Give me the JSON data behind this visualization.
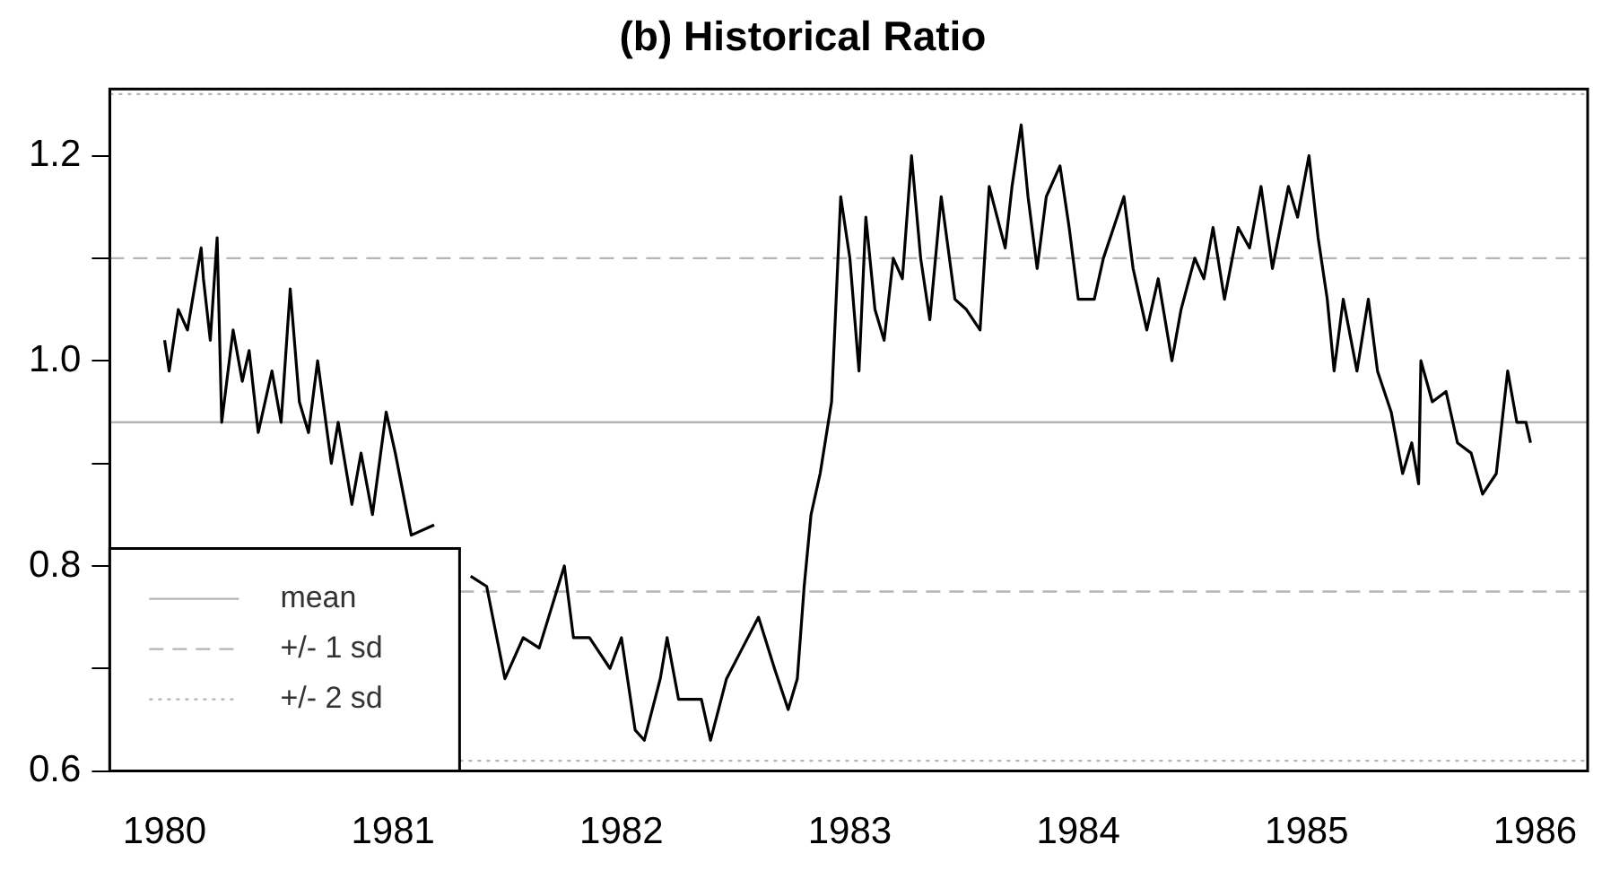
{
  "chart_data": {
    "type": "line",
    "title": "(b) Historical Ratio",
    "x": [
      1980.0,
      1980.02,
      1980.06,
      1980.1,
      1980.16,
      1980.17,
      1980.2,
      1980.23,
      1980.25,
      1980.3,
      1980.34,
      1980.37,
      1980.41,
      1980.47,
      1980.51,
      1980.55,
      1980.59,
      1980.63,
      1980.67,
      1980.73,
      1980.76,
      1980.82,
      1980.86,
      1980.91,
      1980.97,
      1981.01,
      1981.08,
      1981.18,
      1981.28,
      1981.34,
      1981.41,
      1981.49,
      1981.57,
      1981.64,
      1981.75,
      1981.79,
      1981.86,
      1981.95,
      1982.0,
      1982.06,
      1982.1,
      1982.17,
      1982.2,
      1982.25,
      1982.35,
      1982.39,
      1982.46,
      1982.53,
      1982.6,
      1982.67,
      1982.73,
      1982.77,
      1982.8,
      1982.83,
      1982.87,
      1982.92,
      1982.96,
      1983.0,
      1983.04,
      1983.07,
      1983.11,
      1983.15,
      1983.19,
      1983.23,
      1983.27,
      1983.31,
      1983.35,
      1983.4,
      1983.46,
      1983.51,
      1983.57,
      1983.61,
      1983.68,
      1983.71,
      1983.75,
      1983.78,
      1983.82,
      1983.86,
      1983.92,
      1983.96,
      1984.0,
      1984.07,
      1984.11,
      1984.2,
      1984.24,
      1984.3,
      1984.35,
      1984.41,
      1984.45,
      1984.51,
      1984.55,
      1984.59,
      1984.64,
      1984.7,
      1984.75,
      1984.8,
      1984.85,
      1984.92,
      1984.96,
      1985.01,
      1985.05,
      1985.09,
      1985.12,
      1985.16,
      1985.22,
      1985.27,
      1985.31,
      1985.37,
      1985.42,
      1985.46,
      1985.49,
      1985.5,
      1985.55,
      1985.61,
      1985.66,
      1985.72,
      1985.77,
      1985.83,
      1985.88,
      1985.92,
      1985.96,
      1985.98
    ],
    "series": [
      {
        "color": "#000000",
        "values": [
          1.02,
          0.99,
          1.05,
          1.03,
          1.11,
          1.08,
          1.02,
          1.12,
          0.94,
          1.03,
          0.98,
          1.01,
          0.93,
          0.99,
          0.94,
          1.07,
          0.96,
          0.93,
          1.0,
          0.9,
          0.94,
          0.86,
          0.91,
          0.85,
          0.95,
          0.91,
          0.83,
          0.84,
          null,
          0.79,
          0.78,
          0.69,
          0.73,
          0.72,
          0.8,
          0.73,
          0.73,
          0.7,
          0.73,
          0.64,
          0.63,
          0.69,
          0.73,
          0.67,
          0.67,
          0.63,
          0.69,
          0.72,
          0.75,
          0.7,
          0.66,
          0.69,
          0.78,
          0.85,
          0.89,
          0.96,
          1.16,
          1.1,
          0.99,
          1.14,
          1.05,
          1.02,
          1.1,
          1.08,
          1.2,
          1.1,
          1.04,
          1.16,
          1.06,
          1.05,
          1.03,
          1.17,
          1.11,
          1.17,
          1.23,
          1.16,
          1.09,
          1.16,
          1.19,
          1.13,
          1.06,
          1.06,
          1.1,
          1.16,
          1.09,
          1.03,
          1.08,
          1.0,
          1.05,
          1.1,
          1.08,
          1.13,
          1.06,
          1.13,
          1.11,
          1.17,
          1.09,
          1.17,
          1.14,
          1.2,
          1.12,
          1.06,
          0.99,
          1.06,
          0.99,
          1.06,
          0.99,
          0.95,
          0.89,
          0.92,
          0.88,
          1.0,
          0.96,
          0.97,
          0.92,
          0.91,
          0.87,
          0.89,
          0.99,
          0.94,
          0.94,
          0.92
        ]
      }
    ],
    "xlim": [
      1979.76,
      1986.23
    ],
    "xticks": [
      1980,
      1981,
      1982,
      1983,
      1984,
      1985,
      1986
    ],
    "ylim": [
      0.6,
      1.265
    ],
    "yticks": [
      0.6,
      {
        "value": 0.7,
        "label": null
      },
      0.8,
      {
        "value": 0.9,
        "label": null
      },
      {
        "value": 1,
        "label": "1.0"
      },
      {
        "value": 1.1,
        "label": null
      },
      1.2
    ],
    "ref_lines": [
      {
        "axis": "y",
        "value": 0.94,
        "label": "mean",
        "color": "#b4b4b4",
        "line_style": "solid"
      },
      {
        "axis": "y",
        "value": 1.1,
        "label": "+/- 1 sd",
        "color": "#b4b4b4",
        "line_style": "dashed"
      },
      {
        "axis": "y",
        "value": 0.775,
        "color": "#b4b4b4",
        "line_style": "dashed"
      },
      {
        "axis": "y",
        "value": 1.26,
        "label": "+/- 2 sd",
        "color": "#b4b4b4",
        "line_style": "dotted"
      },
      {
        "axis": "y",
        "value": 0.61,
        "color": "#b4b4b4",
        "line_style": "dotted"
      }
    ],
    "legend": "bottom left",
    "grid": false,
    "marker": "none",
    "line_style": "solid"
  }
}
